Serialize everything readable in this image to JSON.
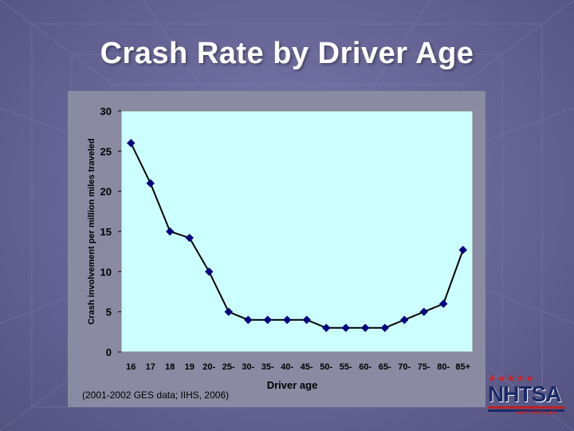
{
  "slide": {
    "title": "Crash Rate by Driver Age",
    "source": "(2001-2002 GES data; IIHS, 2006)"
  },
  "logo": {
    "text": "NHTSA",
    "stars": "★★★★★",
    "url": "www.nhtsa.gov"
  },
  "colors": {
    "plot_bg": "#ccffff",
    "panel_bg": "#8a8aa2",
    "series": "#000080",
    "line": "#000000"
  },
  "chart_data": {
    "type": "line",
    "title": "",
    "xlabel": "Driver age",
    "ylabel": "Crash involvement per million miles traveled",
    "ylim": [
      0,
      30
    ],
    "yticks": [
      "0",
      "5",
      "10",
      "15",
      "20",
      "25",
      "30"
    ],
    "grid": false,
    "categories": [
      "16",
      "17",
      "18",
      "19",
      "20-",
      "25-",
      "30-",
      "35-",
      "40-",
      "45-",
      "50-",
      "55-",
      "60-",
      "65-",
      "70-",
      "75-",
      "80-",
      "85+"
    ],
    "series": [
      {
        "values": [
          26,
          21,
          15,
          14.2,
          10,
          5,
          4,
          4,
          4,
          4,
          3,
          3,
          3,
          3,
          4,
          5,
          6,
          12.7
        ]
      }
    ]
  }
}
